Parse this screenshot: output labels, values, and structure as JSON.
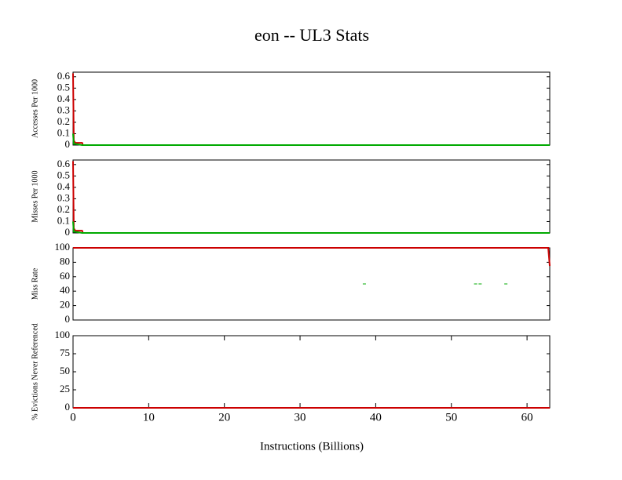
{
  "chart_data": [
    {
      "type": "line",
      "title": "eon -- UL3  Stats",
      "ylabel": "Accesses Per 1000",
      "xlim": [
        0,
        63
      ],
      "ylim": [
        0,
        0.64
      ],
      "yticks": [
        0,
        0.1,
        0.2,
        0.3,
        0.4,
        0.5,
        0.6
      ],
      "series": [
        {
          "color": "#cc0000",
          "x": [
            0,
            0.1,
            0.3,
            1.2,
            1.3,
            63
          ],
          "values": [
            0.63,
            0.04,
            0.02,
            0.02,
            0,
            0
          ]
        },
        {
          "color": "#00aa00",
          "x": [
            0,
            0.1,
            0.3,
            1.2,
            1.3,
            63
          ],
          "values": [
            0.1,
            0.01,
            0.01,
            0,
            0,
            0
          ]
        }
      ]
    },
    {
      "type": "line",
      "ylabel": "Misses Per 1000",
      "xlim": [
        0,
        63
      ],
      "ylim": [
        0,
        0.64
      ],
      "yticks": [
        0,
        0.1,
        0.2,
        0.3,
        0.4,
        0.5,
        0.6
      ],
      "series": [
        {
          "color": "#cc0000",
          "x": [
            0,
            0.1,
            0.3,
            1.2,
            1.3,
            63
          ],
          "values": [
            0.63,
            0.04,
            0.02,
            0.02,
            0,
            0
          ]
        },
        {
          "color": "#00aa00",
          "x": [
            0,
            0.1,
            0.3,
            1.2,
            1.3,
            63
          ],
          "values": [
            0.1,
            0.01,
            0.01,
            0,
            0,
            0
          ]
        }
      ]
    },
    {
      "type": "line",
      "ylabel": "Miss Rate",
      "xlim": [
        0,
        63
      ],
      "ylim": [
        0,
        100
      ],
      "yticks": [
        0,
        20,
        40,
        60,
        80,
        100
      ],
      "series": [
        {
          "color": "#cc0000",
          "x": [
            0,
            62.8,
            63
          ],
          "values": [
            100,
            100,
            75
          ]
        },
        {
          "color": "#00aa00",
          "mode": "points",
          "x": [
            38.5,
            53.2,
            53.8,
            57.2
          ],
          "values": [
            50,
            50,
            50,
            50
          ]
        }
      ]
    },
    {
      "type": "line",
      "ylabel": "% Evictions Never Referenced",
      "xlabel": "Instructions (Billions)",
      "xlim": [
        0,
        63
      ],
      "ylim": [
        0,
        100
      ],
      "yticks": [
        0,
        25,
        50,
        75,
        100
      ],
      "xticks": [
        0,
        10,
        20,
        30,
        40,
        50,
        60
      ],
      "series": [
        {
          "color": "#cc0000",
          "x": [
            0,
            63
          ],
          "values": [
            0,
            0
          ]
        }
      ]
    }
  ]
}
